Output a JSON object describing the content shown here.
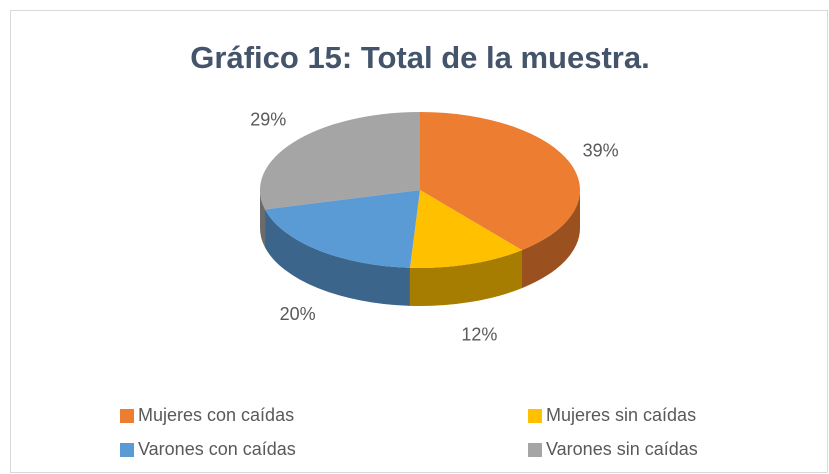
{
  "chart_data": {
    "type": "pie",
    "title": "Gráfico 15: Total de la muestra.",
    "categories": [
      "Mujeres con caídas",
      "Mujeres sin caídas",
      "Varones con caídas",
      "Varones sin caídas"
    ],
    "values": [
      39,
      12,
      20,
      29
    ],
    "value_labels": [
      "39%",
      "12%",
      "20%",
      "29%"
    ],
    "colors": [
      "#ED7D31",
      "#FFC000",
      "#5B9BD5",
      "#A5A5A5"
    ],
    "legend": "bottom"
  }
}
